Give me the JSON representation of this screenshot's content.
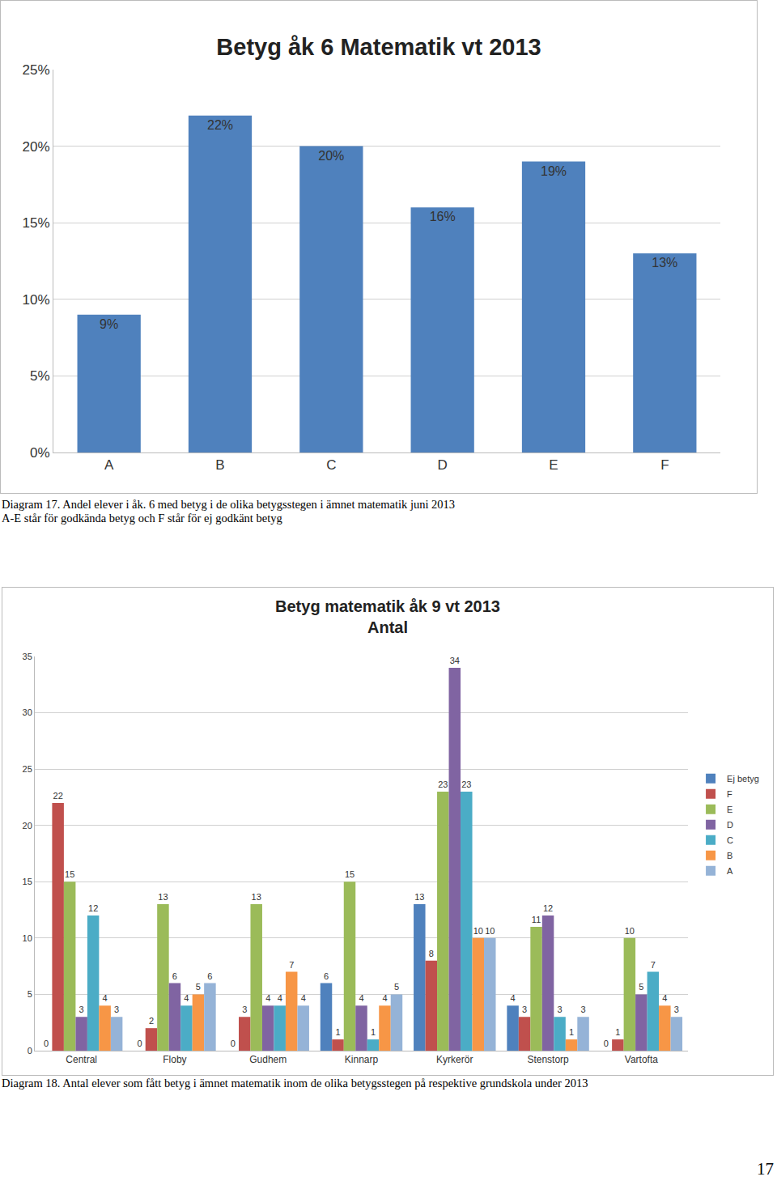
{
  "chart_data": [
    {
      "type": "bar",
      "title": "Betyg åk 6 Matematik vt 2013",
      "categories": [
        "A",
        "B",
        "C",
        "D",
        "E",
        "F"
      ],
      "values": [
        9,
        22,
        20,
        16,
        19,
        13
      ],
      "value_labels": [
        "9%",
        "22%",
        "20%",
        "16%",
        "19%",
        "13%"
      ],
      "data_labels": true,
      "color": "#4f81bd",
      "ylim": [
        0,
        25
      ],
      "yticks": [
        {
          "value": 0,
          "label": "0%"
        },
        {
          "value": 5,
          "label": "5%"
        },
        {
          "value": 10,
          "label": "10%"
        },
        {
          "value": 15,
          "label": "15%"
        },
        {
          "value": 20,
          "label": "20%"
        },
        {
          "value": 25,
          "label": "25%"
        }
      ],
      "grid": true
    },
    {
      "type": "bar",
      "title": "Betyg matematik åk 9 vt 2013",
      "subtitle": "Antal",
      "categories": [
        "Central",
        "Floby",
        "Gudhem",
        "Kinnarp",
        "Kyrkerör",
        "Stenstorp",
        "Vartofta"
      ],
      "series": [
        {
          "name": "Ej betyg",
          "color": "#4f81bd",
          "values": [
            0,
            0,
            0,
            6,
            13,
            4,
            0
          ]
        },
        {
          "name": "F",
          "color": "#c0504d",
          "values": [
            22,
            2,
            3,
            1,
            8,
            3,
            1
          ]
        },
        {
          "name": "E",
          "color": "#9bbb59",
          "values": [
            15,
            13,
            13,
            15,
            23,
            11,
            10
          ]
        },
        {
          "name": "D",
          "color": "#8064a2",
          "values": [
            3,
            6,
            4,
            4,
            34,
            12,
            5
          ]
        },
        {
          "name": "C",
          "color": "#4bacc6",
          "values": [
            12,
            4,
            4,
            1,
            23,
            3,
            7
          ]
        },
        {
          "name": "B",
          "color": "#f79646",
          "values": [
            4,
            5,
            7,
            4,
            10,
            1,
            4
          ]
        },
        {
          "name": "A",
          "color": "#95b3d7",
          "values": [
            3,
            6,
            4,
            5,
            10,
            3,
            3
          ]
        }
      ],
      "data_labels": true,
      "legend": "right",
      "ylim": [
        0,
        35
      ],
      "yticks": [
        0,
        5,
        10,
        15,
        20,
        25,
        30,
        35
      ],
      "grid": true
    }
  ],
  "page": {
    "captions": [
      [
        "Diagram 17. Andel elever i åk. 6 med betyg i de olika betygsstegen i ämnet matematik juni 2013",
        "A-E står för godkända betyg och F står för ej godkänt betyg"
      ],
      [
        "Diagram 18. Antal elever som fått betyg i ämnet matematik inom de olika betygsstegen på respektive grundskola under 2013"
      ]
    ],
    "number": 17
  }
}
